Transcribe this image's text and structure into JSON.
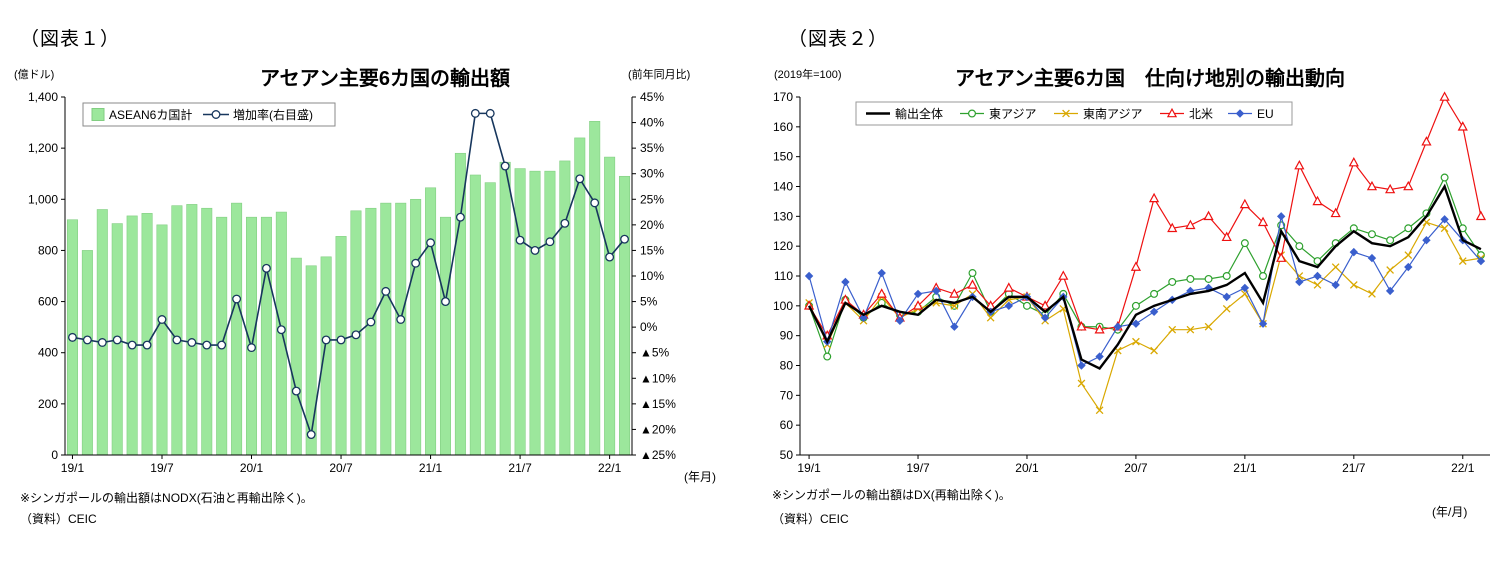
{
  "figure1": {
    "label": "（図表１）",
    "title": "アセアン主要6カ国の輸出額",
    "left_axis_unit": "(億ドル)",
    "right_axis_unit": "(前年同月比)",
    "x_axis_unit": "(年月)",
    "note": "※シンガポールの輸出額はNODX(石油と再輸出除く)。",
    "source": "（資料）CEIC"
  },
  "figure2": {
    "label": "（図表２）",
    "index_note": "(2019年=100)",
    "title": "アセアン主要6カ国　仕向け地別の輸出動向",
    "x_axis_unit": "(年/月)",
    "note": "※シンガポールの輸出額はDX(再輸出除く)。",
    "source": "（資料）CEIC"
  },
  "chart_data": [
    {
      "type": "bar",
      "title": "アセアン主要6カ国の輸出額",
      "x": [
        "19/1",
        "19/2",
        "19/3",
        "19/4",
        "19/5",
        "19/6",
        "19/7",
        "19/8",
        "19/9",
        "19/10",
        "19/11",
        "19/12",
        "20/1",
        "20/2",
        "20/3",
        "20/4",
        "20/5",
        "20/6",
        "20/7",
        "20/8",
        "20/9",
        "20/10",
        "20/11",
        "20/12",
        "21/1",
        "21/2",
        "21/3",
        "21/4",
        "21/5",
        "21/6",
        "21/7",
        "21/8",
        "21/9",
        "21/10",
        "21/11",
        "21/12",
        "22/1",
        "22/2"
      ],
      "x_tick_indices": [
        0,
        6,
        12,
        18,
        24,
        30,
        36
      ],
      "x_tick_labels": [
        "19/1",
        "19/7",
        "20/1",
        "20/7",
        "21/1",
        "21/7",
        "22/1"
      ],
      "left_axis": {
        "unit": "億ドル",
        "min": 0,
        "max": 1400,
        "tick_values": [
          0,
          200,
          400,
          600,
          800,
          1000,
          1200,
          1400
        ],
        "tick_labels": [
          "0",
          "200",
          "400",
          "600",
          "800",
          "1,000",
          "1,200",
          "1,400"
        ]
      },
      "right_axis": {
        "unit": "前年同月比",
        "min": -25,
        "max": 45,
        "tick_values": [
          45,
          40,
          35,
          30,
          25,
          20,
          15,
          10,
          5,
          0,
          -5,
          -10,
          -15,
          -20,
          -25
        ],
        "tick_labels": [
          "45%",
          "40%",
          "35%",
          "30%",
          "25%",
          "20%",
          "15%",
          "10%",
          "5%",
          "0%",
          "▲5%",
          "▲10%",
          "▲15%",
          "▲20%",
          "▲25%"
        ]
      },
      "series": [
        {
          "name": "ASEAN6カ国計",
          "type": "bar",
          "axis": "left",
          "color": "#9CE79C",
          "border": "#82CE82",
          "values": [
            920,
            800,
            960,
            905,
            935,
            945,
            900,
            975,
            980,
            965,
            930,
            985,
            930,
            930,
            950,
            770,
            740,
            775,
            855,
            955,
            965,
            985,
            985,
            1000,
            1045,
            930,
            1180,
            1095,
            1065,
            1145,
            1120,
            1110,
            1110,
            1150,
            1240,
            1305,
            1165,
            1090
          ]
        },
        {
          "name": "増加率(右目盛)",
          "type": "line",
          "axis": "right",
          "color": "#17365D",
          "marker": "circle-open",
          "values": [
            -2,
            -2.5,
            -3,
            -2.5,
            -3.5,
            -3.5,
            1.5,
            -2.5,
            -3,
            -3.5,
            -3.5,
            5.5,
            -4,
            11.5,
            -0.5,
            -12.5,
            -21,
            -2.5,
            -2.5,
            -1.5,
            1,
            7,
            1.5,
            12.5,
            16.5,
            5,
            21.5,
            41.8,
            41.8,
            31.5,
            17,
            15,
            16.7,
            20.3,
            29,
            24.3,
            13.7,
            17.2
          ]
        }
      ]
    },
    {
      "type": "line",
      "title": "アセアン主要6カ国 仕向け地別の輸出動向",
      "x": [
        "19/1",
        "19/2",
        "19/3",
        "19/4",
        "19/5",
        "19/6",
        "19/7",
        "19/8",
        "19/9",
        "19/10",
        "19/11",
        "19/12",
        "20/1",
        "20/2",
        "20/3",
        "20/4",
        "20/5",
        "20/6",
        "20/7",
        "20/8",
        "20/9",
        "20/10",
        "20/11",
        "20/12",
        "21/1",
        "21/2",
        "21/3",
        "21/4",
        "21/5",
        "21/6",
        "21/7",
        "21/8",
        "21/9",
        "21/10",
        "21/11",
        "21/12",
        "22/1",
        "22/2"
      ],
      "x_tick_indices": [
        0,
        6,
        12,
        18,
        24,
        30,
        36
      ],
      "x_tick_labels": [
        "19/1",
        "19/7",
        "20/1",
        "20/7",
        "21/1",
        "21/7",
        "22/1"
      ],
      "y_axis": {
        "unit": "2019年=100",
        "min": 50,
        "max": 170,
        "tick_values": [
          50,
          60,
          70,
          80,
          90,
          100,
          110,
          120,
          130,
          140,
          150,
          160,
          170
        ],
        "tick_labels": [
          "50",
          "60",
          "70",
          "80",
          "90",
          "100",
          "110",
          "120",
          "130",
          "140",
          "150",
          "160",
          "170"
        ]
      },
      "series": [
        {
          "name": "輸出全体",
          "color": "#000000",
          "width": 2.4,
          "marker": "none",
          "values": [
            100,
            88,
            101,
            97,
            100,
            98,
            97,
            102,
            101,
            103,
            98,
            103,
            103,
            98,
            103,
            82,
            79,
            87,
            97,
            100,
            102,
            104,
            105,
            107,
            111,
            101,
            125,
            115,
            113,
            120,
            125,
            121,
            120,
            123,
            130,
            140,
            122,
            119
          ]
        },
        {
          "name": "東アジア",
          "color": "#2EA12E",
          "width": 1.2,
          "marker": "circle-open",
          "values": [
            100,
            83,
            102,
            96,
            101,
            97,
            98,
            103,
            100,
            111,
            98,
            104,
            100,
            97,
            104,
            93,
            93,
            92,
            100,
            104,
            108,
            109,
            109,
            110,
            121,
            110,
            127,
            120,
            115,
            121,
            126,
            124,
            122,
            126,
            131,
            143,
            126,
            117
          ]
        },
        {
          "name": "東南アジア",
          "color": "#D9A800",
          "width": 1.2,
          "marker": "x",
          "values": [
            101,
            87,
            101,
            95,
            103,
            96,
            99,
            101,
            100,
            104,
            96,
            102,
            103,
            95,
            99,
            74,
            65,
            85,
            88,
            85,
            92,
            92,
            93,
            99,
            104,
            94,
            117,
            110,
            107,
            113,
            107,
            104,
            112,
            117,
            128,
            126,
            115,
            116
          ]
        },
        {
          "name": "北米",
          "color": "#EE1111",
          "width": 1.2,
          "marker": "triangle-open",
          "values": [
            100,
            90,
            102,
            97,
            104,
            96,
            100,
            106,
            104,
            107,
            100,
            106,
            103,
            100,
            110,
            93,
            92,
            93,
            113,
            136,
            126,
            127,
            130,
            123,
            134,
            128,
            116,
            147,
            135,
            131,
            148,
            140,
            139,
            140,
            155,
            170,
            160,
            130
          ]
        },
        {
          "name": "EU",
          "color": "#3A5FCD",
          "width": 1.2,
          "marker": "diamond",
          "values": [
            110,
            88,
            108,
            96,
            111,
            95,
            104,
            105,
            93,
            103,
            98,
            100,
            103,
            96,
            103,
            80,
            83,
            93,
            94,
            98,
            102,
            105,
            106,
            103,
            106,
            94,
            130,
            108,
            110,
            107,
            118,
            116,
            105,
            113,
            122,
            129,
            122,
            115
          ]
        }
      ]
    }
  ]
}
